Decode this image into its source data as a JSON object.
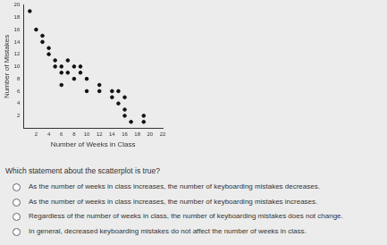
{
  "chart_data": {
    "type": "scatter",
    "x_label": "Number of Weeks in Class",
    "y_label": "Number of Mistakes",
    "x": [
      1,
      2,
      3,
      3,
      4,
      4,
      5,
      5,
      6,
      6,
      6,
      7,
      7,
      8,
      8,
      9,
      9,
      10,
      10,
      12,
      12,
      14,
      14,
      15,
      15,
      16,
      16,
      16,
      17,
      19,
      19
    ],
    "values": [
      19,
      16,
      15,
      14,
      13,
      12,
      11,
      10,
      10,
      9,
      7,
      11,
      9,
      10,
      8,
      10,
      9,
      8,
      6,
      7,
      6,
      6,
      5,
      6,
      4,
      5,
      3,
      2,
      1,
      2,
      1
    ],
    "color": "#111111",
    "marker": "circle",
    "xlim": [
      0,
      22
    ],
    "xticks": [
      2,
      4,
      6,
      8,
      10,
      12,
      14,
      16,
      18,
      20,
      22
    ],
    "ylim": [
      0,
      20
    ],
    "yticks": [
      2,
      4,
      6,
      8,
      10,
      12,
      14,
      16,
      18,
      20
    ],
    "grid": false
  },
  "question": "Which statement about the scatterplot is true?",
  "options": [
    "As the number of weeks in class increases, the number of keyboarding mistakes decreases.",
    "As the number of weeks in class increases, the number of keyboarding mistakes increases.",
    "Regardless of the number of weeks in class, the number of keyboarding mistakes does not change.",
    "In general, decreased keyboarding mistakes do not affect the number of weeks in class."
  ]
}
